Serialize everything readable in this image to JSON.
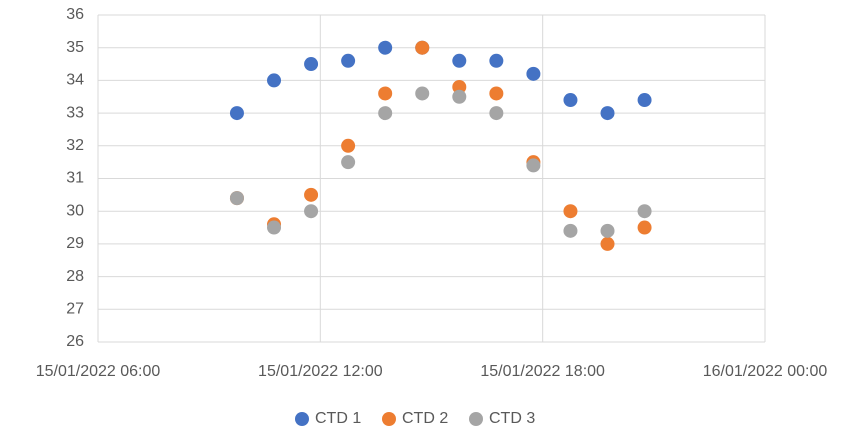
{
  "chart_data": {
    "type": "scatter",
    "x": [
      "2022-01-15T09:45",
      "2022-01-15T10:45",
      "2022-01-15T11:45",
      "2022-01-15T12:45",
      "2022-01-15T13:45",
      "2022-01-15T14:45",
      "2022-01-15T15:45",
      "2022-01-15T16:45",
      "2022-01-15T17:45",
      "2022-01-15T18:45",
      "2022-01-15T19:45",
      "2022-01-15T20:45"
    ],
    "series": [
      {
        "name": "CTD 1",
        "color": "#4472c4",
        "values": [
          33,
          34,
          34.5,
          34.6,
          35,
          35,
          34.6,
          34.6,
          34.2,
          33.4,
          33,
          33.4
        ]
      },
      {
        "name": "CTD 2",
        "color": "#ed7d31",
        "values": [
          30.4,
          29.6,
          30.5,
          32,
          33.6,
          35,
          33.8,
          33.6,
          31.5,
          30,
          29,
          29.5
        ]
      },
      {
        "name": "CTD 3",
        "color": "#a5a5a5",
        "values": [
          30.4,
          29.5,
          30,
          31.5,
          33,
          33.6,
          33.5,
          33,
          31.4,
          29.4,
          29.4,
          30
        ]
      }
    ],
    "xlim": [
      "2022-01-15T06:00",
      "2022-01-16T00:00"
    ],
    "xticks": [
      {
        "value": "2022-01-15T06:00",
        "label": "15/01/2022 06:00"
      },
      {
        "value": "2022-01-15T12:00",
        "label": "15/01/2022 12:00"
      },
      {
        "value": "2022-01-15T18:00",
        "label": "15/01/2022 18:00"
      },
      {
        "value": "2022-01-16T00:00",
        "label": "16/01/2022 00:00"
      }
    ],
    "ylim": [
      26,
      36
    ],
    "yticks": [
      26,
      27,
      28,
      29,
      30,
      31,
      32,
      33,
      34,
      35,
      36
    ],
    "grid": true,
    "legend": "bottom"
  }
}
